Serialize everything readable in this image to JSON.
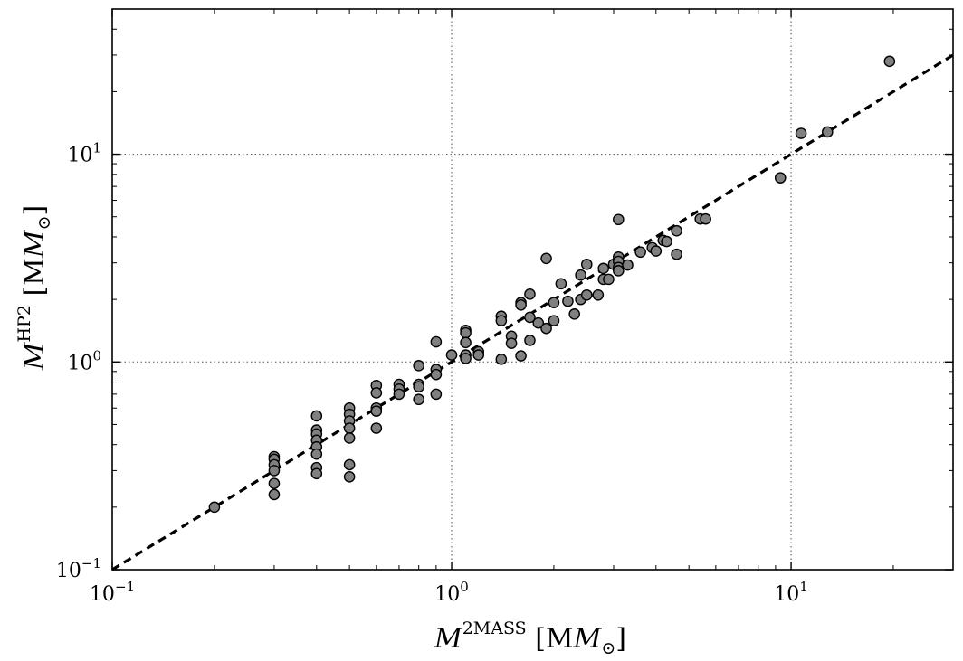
{
  "chart_data": {
    "type": "scatter",
    "title": "",
    "xlabel": {
      "main": "M",
      "sup": "2MASS",
      "unit": " [M",
      "unit_sub": "⊙",
      "unit_close": "]"
    },
    "ylabel": {
      "main": "M",
      "sup": "HP2",
      "unit": " [M",
      "unit_sub": "⊙",
      "unit_close": "]"
    },
    "xscale": "log",
    "yscale": "log",
    "xlim": [
      0.1,
      30
    ],
    "ylim": [
      0.1,
      50
    ],
    "grid": true,
    "x_ticks": [
      {
        "base": "10",
        "exp": "−1",
        "value": 0.1
      },
      {
        "base": "10",
        "exp": "0",
        "value": 1
      },
      {
        "base": "10",
        "exp": "1",
        "value": 10
      }
    ],
    "y_ticks": [
      {
        "base": "10",
        "exp": "−1",
        "value": 0.1
      },
      {
        "base": "10",
        "exp": "0",
        "value": 1
      },
      {
        "base": "10",
        "exp": "1",
        "value": 10
      }
    ],
    "reference_line": {
      "style": "dashed",
      "color": "#000000",
      "x": [
        0.1,
        30
      ],
      "y": [
        0.1,
        30
      ]
    },
    "marker_color": "#808080",
    "marker_edge": "#000000",
    "series": [
      {
        "points": [
          [
            0.2,
            0.2
          ],
          [
            0.3,
            0.35
          ],
          [
            0.3,
            0.34
          ],
          [
            0.3,
            0.32
          ],
          [
            0.3,
            0.3
          ],
          [
            0.3,
            0.26
          ],
          [
            0.3,
            0.23
          ],
          [
            0.4,
            0.55
          ],
          [
            0.4,
            0.47
          ],
          [
            0.4,
            0.45
          ],
          [
            0.4,
            0.42
          ],
          [
            0.4,
            0.39
          ],
          [
            0.4,
            0.36
          ],
          [
            0.4,
            0.31
          ],
          [
            0.4,
            0.29
          ],
          [
            0.5,
            0.6
          ],
          [
            0.5,
            0.56
          ],
          [
            0.5,
            0.52
          ],
          [
            0.5,
            0.48
          ],
          [
            0.5,
            0.43
          ],
          [
            0.5,
            0.32
          ],
          [
            0.5,
            0.28
          ],
          [
            0.6,
            0.77
          ],
          [
            0.6,
            0.71
          ],
          [
            0.6,
            0.6
          ],
          [
            0.6,
            0.58
          ],
          [
            0.6,
            0.48
          ],
          [
            0.7,
            0.78
          ],
          [
            0.7,
            0.74
          ],
          [
            0.7,
            0.7
          ],
          [
            0.8,
            0.96
          ],
          [
            0.8,
            0.78
          ],
          [
            0.8,
            0.76
          ],
          [
            0.8,
            0.66
          ],
          [
            0.9,
            1.25
          ],
          [
            0.9,
            0.92
          ],
          [
            0.9,
            0.87
          ],
          [
            0.9,
            0.7
          ],
          [
            1.0,
            1.08
          ],
          [
            1.1,
            1.42
          ],
          [
            1.1,
            1.38
          ],
          [
            1.1,
            1.24
          ],
          [
            1.1,
            1.08
          ],
          [
            1.1,
            1.04
          ],
          [
            1.2,
            1.12
          ],
          [
            1.2,
            1.08
          ],
          [
            1.4,
            1.66
          ],
          [
            1.4,
            1.58
          ],
          [
            1.4,
            1.03
          ],
          [
            1.5,
            1.33
          ],
          [
            1.5,
            1.23
          ],
          [
            1.6,
            1.93
          ],
          [
            1.6,
            1.88
          ],
          [
            1.6,
            1.07
          ],
          [
            1.7,
            2.12
          ],
          [
            1.7,
            1.64
          ],
          [
            1.7,
            1.27
          ],
          [
            1.8,
            1.54
          ],
          [
            1.9,
            3.15
          ],
          [
            1.9,
            1.45
          ],
          [
            2.0,
            1.93
          ],
          [
            2.0,
            1.58
          ],
          [
            2.1,
            2.38
          ],
          [
            2.2,
            1.96
          ],
          [
            2.3,
            1.7
          ],
          [
            2.4,
            2.62
          ],
          [
            2.4,
            2.0
          ],
          [
            2.5,
            2.95
          ],
          [
            2.5,
            2.1
          ],
          [
            2.7,
            2.1
          ],
          [
            2.8,
            2.82
          ],
          [
            2.8,
            2.5
          ],
          [
            2.9,
            2.5
          ],
          [
            3.0,
            2.95
          ],
          [
            3.1,
            4.85
          ],
          [
            3.1,
            3.2
          ],
          [
            3.1,
            3.05
          ],
          [
            3.1,
            2.85
          ],
          [
            3.1,
            2.75
          ],
          [
            3.3,
            2.93
          ],
          [
            3.6,
            3.38
          ],
          [
            3.9,
            3.55
          ],
          [
            4.0,
            3.42
          ],
          [
            4.2,
            3.85
          ],
          [
            4.3,
            3.8
          ],
          [
            4.6,
            4.28
          ],
          [
            4.6,
            3.3
          ],
          [
            5.4,
            4.88
          ],
          [
            5.6,
            4.88
          ],
          [
            9.3,
            7.7
          ],
          [
            10.7,
            12.6
          ],
          [
            12.8,
            12.8
          ],
          [
            19.5,
            28
          ]
        ]
      }
    ]
  }
}
